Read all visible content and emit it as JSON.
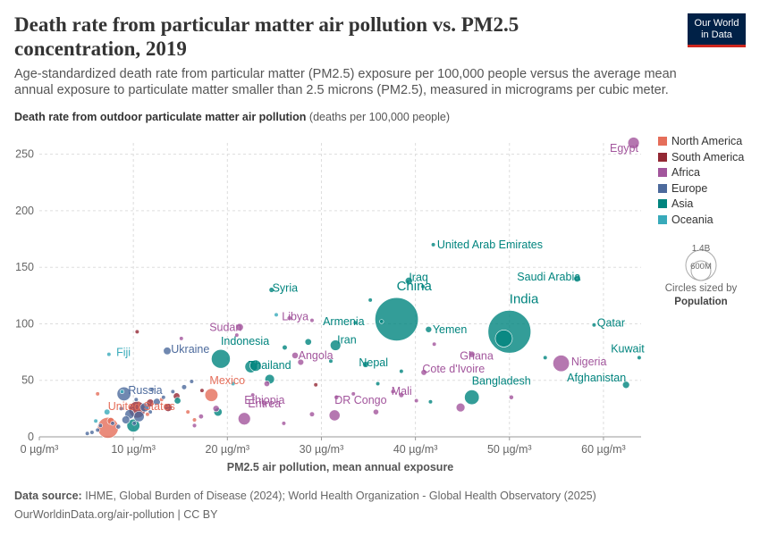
{
  "title": "Death rate from particular matter air pollution vs. PM2.5 concentration, 2019",
  "subtitle": "Age-standardized death rate from particular matter (PM2.5) exposure per 100,000 people versus the average mean annual exposure to particulate matter smaller than 2.5 microns (PM2.5), measured in micrograms per cubic meter.",
  "ylabel_main": "Death rate from outdoor particulate matter air pollution",
  "ylabel_unit": "(deaths per 100,000 people)",
  "logo": {
    "line1": "Our World",
    "line2": "in Data"
  },
  "footer": {
    "source_label": "Data source:",
    "source_text": "IHME, Global Burden of Disease (2024); World Health Organization - Global Health Observatory (2025)",
    "url_license": "OurWorldinData.org/air-pollution | CC BY"
  },
  "size_legend": {
    "big": "1.4B",
    "small": "600M",
    "caption": "Circles sized by",
    "caption_bold": "Population"
  },
  "colors": {
    "North America": "#e56e5a",
    "South America": "#932834",
    "Africa": "#a2559c",
    "Europe": "#4c6a9c",
    "Asia": "#00847e",
    "Oceania": "#38aaba"
  },
  "chart_data": {
    "type": "scatter",
    "xlabel": "PM2.5 air pollution, mean annual exposure",
    "xlim": [
      0,
      64
    ],
    "ylim": [
      0,
      260
    ],
    "x_ticks": [
      {
        "value": 0,
        "label": "0 µg/m³"
      },
      {
        "value": 10,
        "label": "10 µg/m³"
      },
      {
        "value": 20,
        "label": "20 µg/m³"
      },
      {
        "value": 30,
        "label": "30 µg/m³"
      },
      {
        "value": 40,
        "label": "40 µg/m³"
      },
      {
        "value": 50,
        "label": "50 µg/m³"
      },
      {
        "value": 60,
        "label": "60 µg/m³"
      }
    ],
    "y_ticks": [
      0,
      50,
      100,
      150,
      200,
      250
    ],
    "legend": [
      "North America",
      "South America",
      "Africa",
      "Europe",
      "Asia",
      "Oceania"
    ],
    "labeled_points": [
      {
        "name": "Egypt",
        "region": "Africa",
        "x": 63.2,
        "y": 260,
        "pop": 100
      },
      {
        "name": "United Arab Emirates",
        "region": "Asia",
        "x": 41.9,
        "y": 170,
        "pop": 9.8
      },
      {
        "name": "Iraq",
        "region": "Asia",
        "x": 39.3,
        "y": 138,
        "pop": 40
      },
      {
        "name": "Saudi Arabia",
        "region": "Asia",
        "x": 57.2,
        "y": 140,
        "pop": 35
      },
      {
        "name": "Syria",
        "region": "Asia",
        "x": 24.7,
        "y": 130,
        "pop": 20
      },
      {
        "name": "China",
        "region": "Asia",
        "x": 38.0,
        "y": 104,
        "pop": 1420
      },
      {
        "name": "India",
        "region": "Asia",
        "x": 50.0,
        "y": 93,
        "pop": 1390
      },
      {
        "name": "Qatar",
        "region": "Asia",
        "x": 59.0,
        "y": 99,
        "pop": 2.8
      },
      {
        "name": "Yemen",
        "region": "Asia",
        "x": 41.4,
        "y": 95,
        "pop": 30
      },
      {
        "name": "Armenia",
        "region": "Asia",
        "x": 36.4,
        "y": 102,
        "pop": 3
      },
      {
        "name": "Libya",
        "region": "Africa",
        "x": 29.0,
        "y": 103,
        "pop": 6.8
      },
      {
        "name": "Sudan",
        "region": "Africa",
        "x": 21.3,
        "y": 97,
        "pop": 43
      },
      {
        "name": "Iran",
        "region": "Asia",
        "x": 31.5,
        "y": 81,
        "pop": 84
      },
      {
        "name": "Indonesia",
        "region": "Asia",
        "x": 19.3,
        "y": 69,
        "pop": 270
      },
      {
        "name": "Ukraine",
        "region": "Europe",
        "x": 13.6,
        "y": 76,
        "pop": 44
      },
      {
        "name": "Fiji",
        "region": "Oceania",
        "x": 7.4,
        "y": 73,
        "pop": 0.9
      },
      {
        "name": "Angola",
        "region": "Africa",
        "x": 27.2,
        "y": 72,
        "pop": 32
      },
      {
        "name": "Ghana",
        "region": "Africa",
        "x": 46.0,
        "y": 73,
        "pop": 31
      },
      {
        "name": "Nigeria",
        "region": "Africa",
        "x": 55.5,
        "y": 65,
        "pop": 206
      },
      {
        "name": "Kuwait",
        "region": "Asia",
        "x": 63.8,
        "y": 70,
        "pop": 4.3
      },
      {
        "name": "Nepal",
        "region": "Asia",
        "x": 34.7,
        "y": 64,
        "pop": 29
      },
      {
        "name": "Thailand",
        "region": "Asia",
        "x": 24.5,
        "y": 51,
        "pop": 70
      },
      {
        "name": "Cote d'Ivoire",
        "region": "Africa",
        "x": 40.9,
        "y": 57,
        "pop": 26
      },
      {
        "name": "Afghanistan",
        "region": "Asia",
        "x": 62.4,
        "y": 46,
        "pop": 38
      },
      {
        "name": "Russia",
        "region": "Europe",
        "x": 9.0,
        "y": 38,
        "pop": 145
      },
      {
        "name": "Eritrea",
        "region": "Africa",
        "x": 23.9,
        "y": 29,
        "pop": 3.5
      },
      {
        "name": "Mexico",
        "region": "North America",
        "x": 18.3,
        "y": 37,
        "pop": 128
      },
      {
        "name": "Mali",
        "region": "Africa",
        "x": 38.5,
        "y": 37,
        "pop": 20
      },
      {
        "name": "Bangladesh",
        "region": "Asia",
        "x": 46.0,
        "y": 35,
        "pop": 164
      },
      {
        "name": "Ethiopia",
        "region": "Africa",
        "x": 21.8,
        "y": 16,
        "pop": 115
      },
      {
        "name": "DR Congo",
        "region": "Africa",
        "x": 31.4,
        "y": 19,
        "pop": 90
      },
      {
        "name": "United States",
        "region": "North America",
        "x": 7.3,
        "y": 8,
        "pop": 331
      }
    ],
    "other_points": [
      {
        "region": "Europe",
        "x": 5.1,
        "y": 3,
        "pop": 5
      },
      {
        "region": "Europe",
        "x": 5.6,
        "y": 4,
        "pop": 10
      },
      {
        "region": "Europe",
        "x": 6.2,
        "y": 6,
        "pop": 8
      },
      {
        "region": "Europe",
        "x": 6.5,
        "y": 10,
        "pop": 6
      },
      {
        "region": "Europe",
        "x": 7.8,
        "y": 12,
        "pop": 11
      },
      {
        "region": "Europe",
        "x": 8.4,
        "y": 9,
        "pop": 17
      },
      {
        "region": "Europe",
        "x": 9.2,
        "y": 15,
        "pop": 47
      },
      {
        "region": "Europe",
        "x": 9.6,
        "y": 20,
        "pop": 67
      },
      {
        "region": "Europe",
        "x": 10.1,
        "y": 12,
        "pop": 9
      },
      {
        "region": "Europe",
        "x": 10.6,
        "y": 18,
        "pop": 83
      },
      {
        "region": "Europe",
        "x": 11.2,
        "y": 26,
        "pop": 60
      },
      {
        "region": "Europe",
        "x": 11.8,
        "y": 22,
        "pop": 10
      },
      {
        "region": "Europe",
        "x": 12.5,
        "y": 31,
        "pop": 38
      },
      {
        "region": "Europe",
        "x": 13.2,
        "y": 35,
        "pop": 10
      },
      {
        "region": "Europe",
        "x": 14.2,
        "y": 40,
        "pop": 7
      },
      {
        "region": "Europe",
        "x": 15.4,
        "y": 44,
        "pop": 19
      },
      {
        "region": "Europe",
        "x": 16.2,
        "y": 49,
        "pop": 4
      },
      {
        "region": "Europe",
        "x": 8.7,
        "y": 25,
        "pop": 5
      },
      {
        "region": "Europe",
        "x": 10.3,
        "y": 33,
        "pop": 3
      },
      {
        "region": "Europe",
        "x": 12.0,
        "y": 42,
        "pop": 4
      },
      {
        "region": "North America",
        "x": 7.6,
        "y": 14,
        "pop": 38
      },
      {
        "region": "North America",
        "x": 11.5,
        "y": 20,
        "pop": 10
      },
      {
        "region": "North America",
        "x": 13.0,
        "y": 33,
        "pop": 12
      },
      {
        "region": "North America",
        "x": 15.8,
        "y": 22,
        "pop": 6
      },
      {
        "region": "North America",
        "x": 16.5,
        "y": 15,
        "pop": 11
      },
      {
        "region": "North America",
        "x": 6.2,
        "y": 38,
        "pop": 3
      },
      {
        "region": "South America",
        "x": 10.4,
        "y": 24,
        "pop": 212
      },
      {
        "region": "South America",
        "x": 11.8,
        "y": 30,
        "pop": 45
      },
      {
        "region": "South America",
        "x": 13.7,
        "y": 26,
        "pop": 50
      },
      {
        "region": "South America",
        "x": 14.6,
        "y": 36,
        "pop": 33
      },
      {
        "region": "South America",
        "x": 10.4,
        "y": 93,
        "pop": 5
      },
      {
        "region": "South America",
        "x": 17.3,
        "y": 41,
        "pop": 11
      },
      {
        "region": "South America",
        "x": 29.4,
        "y": 46,
        "pop": 3
      },
      {
        "region": "Africa",
        "x": 15.1,
        "y": 87,
        "pop": 12
      },
      {
        "region": "Africa",
        "x": 21.0,
        "y": 90,
        "pop": 8
      },
      {
        "region": "Africa",
        "x": 26.6,
        "y": 105,
        "pop": 17
      },
      {
        "region": "Africa",
        "x": 27.8,
        "y": 66,
        "pop": 28
      },
      {
        "region": "Africa",
        "x": 24.2,
        "y": 47,
        "pop": 25
      },
      {
        "region": "Africa",
        "x": 29.0,
        "y": 20,
        "pop": 19
      },
      {
        "region": "Africa",
        "x": 31.6,
        "y": 35,
        "pop": 16
      },
      {
        "region": "Africa",
        "x": 33.4,
        "y": 38,
        "pop": 12
      },
      {
        "region": "Africa",
        "x": 35.8,
        "y": 22,
        "pop": 24
      },
      {
        "region": "Africa",
        "x": 37.6,
        "y": 40,
        "pop": 13
      },
      {
        "region": "Africa",
        "x": 40.1,
        "y": 32,
        "pop": 8
      },
      {
        "region": "Africa",
        "x": 42.0,
        "y": 82,
        "pop": 4
      },
      {
        "region": "Africa",
        "x": 44.8,
        "y": 26,
        "pop": 59
      },
      {
        "region": "Africa",
        "x": 50.2,
        "y": 35,
        "pop": 16
      },
      {
        "region": "Africa",
        "x": 18.8,
        "y": 25,
        "pop": 31
      },
      {
        "region": "Africa",
        "x": 17.2,
        "y": 18,
        "pop": 18
      },
      {
        "region": "Africa",
        "x": 16.5,
        "y": 10,
        "pop": 14
      },
      {
        "region": "Africa",
        "x": 22.7,
        "y": 37,
        "pop": 6
      },
      {
        "region": "Africa",
        "x": 26.0,
        "y": 12,
        "pop": 5
      },
      {
        "region": "Asia",
        "x": 10.0,
        "y": 10,
        "pop": 126
      },
      {
        "region": "Asia",
        "x": 19.0,
        "y": 22,
        "pop": 52
      },
      {
        "region": "Asia",
        "x": 22.5,
        "y": 62,
        "pop": 109
      },
      {
        "region": "Asia",
        "x": 26.1,
        "y": 79,
        "pop": 19
      },
      {
        "region": "Asia",
        "x": 28.6,
        "y": 84,
        "pop": 33
      },
      {
        "region": "Asia",
        "x": 31.0,
        "y": 67,
        "pop": 5
      },
      {
        "region": "Asia",
        "x": 33.6,
        "y": 101,
        "pop": 10
      },
      {
        "region": "Asia",
        "x": 35.2,
        "y": 121,
        "pop": 1.7
      },
      {
        "region": "Asia",
        "x": 40.8,
        "y": 133,
        "pop": 4.1
      },
      {
        "region": "Asia",
        "x": 38.5,
        "y": 58,
        "pop": 12
      },
      {
        "region": "Asia",
        "x": 41.6,
        "y": 31,
        "pop": 9
      },
      {
        "region": "Asia",
        "x": 49.4,
        "y": 87,
        "pop": 220
      },
      {
        "region": "Asia",
        "x": 53.8,
        "y": 70,
        "pop": 6
      },
      {
        "region": "Asia",
        "x": 36.0,
        "y": 47,
        "pop": 3
      },
      {
        "region": "Asia",
        "x": 23.0,
        "y": 63,
        "pop": 97
      },
      {
        "region": "Asia",
        "x": 14.7,
        "y": 32,
        "pop": 33
      },
      {
        "region": "Oceania",
        "x": 7.2,
        "y": 22,
        "pop": 26
      },
      {
        "region": "Oceania",
        "x": 6.0,
        "y": 14,
        "pop": 5
      },
      {
        "region": "Oceania",
        "x": 8.8,
        "y": 40,
        "pop": 9
      },
      {
        "region": "Oceania",
        "x": 20.6,
        "y": 47,
        "pop": 0.3
      },
      {
        "region": "Oceania",
        "x": 25.2,
        "y": 108,
        "pop": 0.2
      }
    ]
  }
}
